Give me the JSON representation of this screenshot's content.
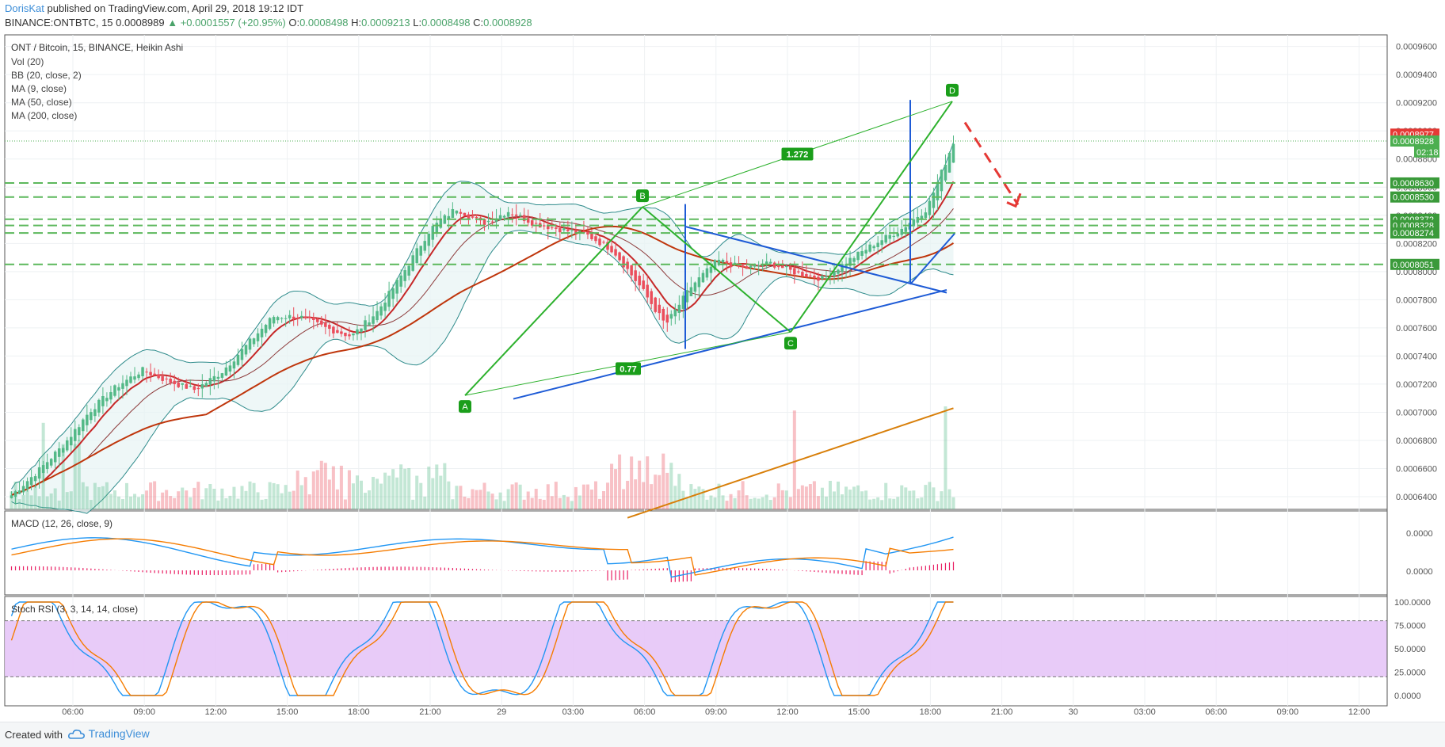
{
  "header": {
    "author": "DorisKat",
    "published_text": "published on TradingView.com, April 29, 2018 19:12 IDT",
    "symbol": "BINANCE:ONTBTC, 15",
    "last": "0.0008989",
    "change": "▲ +0.0001557 (+20.95%)",
    "o_label": "O:",
    "o_value": "0.0008498",
    "h_label": "H:",
    "h_value": "0.0009213",
    "l_label": "L:",
    "l_value": "0.0008498",
    "c_label": "C:",
    "c_value": "0.0008928"
  },
  "footer": {
    "created_with": "Created with",
    "brand": "TradingView"
  },
  "colors": {
    "up": "#53b987",
    "down": "#eb4d5c",
    "bb": "#2e8b8b",
    "bb_fill": "#e7f4f4",
    "ma9": "#c62828",
    "ma50": "#bf360c",
    "ma200": "#d87f0a",
    "pattern": "#2db12d",
    "triangle": "#1e5bd6",
    "hline": "#5cb85c",
    "macd": "#2196f3",
    "signal": "#f57c00",
    "hist": "#e91e63",
    "stoch_band": "#e6c5f7"
  },
  "chart_data": [
    {
      "type": "candlestick",
      "title": "ONT / Bitcoin, 15, BINANCE, Heikin Ashi",
      "studies": [
        "Vol (20)",
        "BB (20, close, 2)",
        "MA (9, close)",
        "MA (50, close)",
        "MA (200, close)"
      ],
      "x_ticks": [
        "06:00",
        "09:00",
        "12:00",
        "15:00",
        "18:00",
        "21:00",
        "29",
        "03:00",
        "06:00",
        "09:00",
        "12:00",
        "15:00",
        "18:00",
        "21:00",
        "30",
        "03:00",
        "06:00",
        "09:00",
        "12:00"
      ],
      "y_ticks": [
        "0.0006400",
        "0.0006600",
        "0.0006800",
        "0.0007000",
        "0.0007200",
        "0.0007400",
        "0.0007600",
        "0.0007800",
        "0.0008000",
        "0.0008200",
        "0.0008400",
        "0.0008600",
        "0.0008800",
        "0.0009000",
        "0.0009200",
        "0.0009400",
        "0.0009600"
      ],
      "ylim": [
        0.000631,
        0.000966
      ],
      "price_labels": [
        {
          "text": "0.0008977",
          "value": 0.0008977,
          "color": "#e53935"
        },
        {
          "text": "0.0008928",
          "value": 0.0008928,
          "color": "#4caf50"
        },
        {
          "text": "02:18",
          "value": 0.000885,
          "color": "#4caf50"
        },
        {
          "text": "0.0008630",
          "value": 0.000863,
          "color": "#3a9a3a"
        },
        {
          "text": "0.0008530",
          "value": 0.000853,
          "color": "#3a9a3a"
        },
        {
          "text": "0.0008372",
          "value": 0.0008372,
          "color": "#3a9a3a"
        },
        {
          "text": "0.0008328",
          "value": 0.0008328,
          "color": "#3a9a3a"
        },
        {
          "text": "0.0008274",
          "value": 0.0008274,
          "color": "#3a9a3a"
        },
        {
          "text": "0.0008051",
          "value": 0.0008051,
          "color": "#3a9a3a"
        }
      ],
      "horizontal_levels": [
        0.000863,
        0.000853,
        0.0008372,
        0.0008328,
        0.0008274,
        0.0008051
      ],
      "close_line": 0.0008928,
      "pattern_points": [
        {
          "label": "A",
          "value": 0.000712
        },
        {
          "label": "B",
          "value": 0.000846
        },
        {
          "label": "C",
          "value": 0.000757
        },
        {
          "label": "D",
          "value": 0.000921
        }
      ],
      "ratio_labels": [
        "1.272",
        "0.77"
      ],
      "close_path": [
        0.000641,
        0.000658,
        0.000677,
        0.000701,
        0.000718,
        0.00073,
        0.000722,
        0.000716,
        0.000728,
        0.000748,
        0.000768,
        0.000768,
        0.00076,
        0.000754,
        0.000772,
        0.0008,
        0.00083,
        0.000845,
        0.000834,
        0.000843,
        0.000834,
        0.00083,
        0.000826,
        0.000815,
        0.00079,
        0.000762,
        0.00079,
        0.000808,
        0.000802,
        0.000806,
        0.000799,
        0.000795,
        0.000808,
        0.00082,
        0.00083,
        0.000845,
        0.000892
      ],
      "volume_peaks": [
        0.0006935,
        0.0007125
      ]
    },
    {
      "type": "line",
      "title": "MACD (12, 26, close, 9)",
      "y_ticks": [
        "0.0000",
        "0.0000"
      ],
      "series": [
        {
          "name": "MACD"
        },
        {
          "name": "Signal"
        },
        {
          "name": "Histogram"
        }
      ]
    },
    {
      "type": "line",
      "title": "Stoch RSI (3, 3, 14, 14, close)",
      "y_ticks": [
        "100.0000",
        "75.0000",
        "50.0000",
        "25.0000",
        "0.0000"
      ],
      "ylim": [
        0,
        100
      ],
      "bands": [
        80,
        20
      ],
      "series": [
        {
          "name": "K"
        },
        {
          "name": "D"
        }
      ]
    }
  ]
}
